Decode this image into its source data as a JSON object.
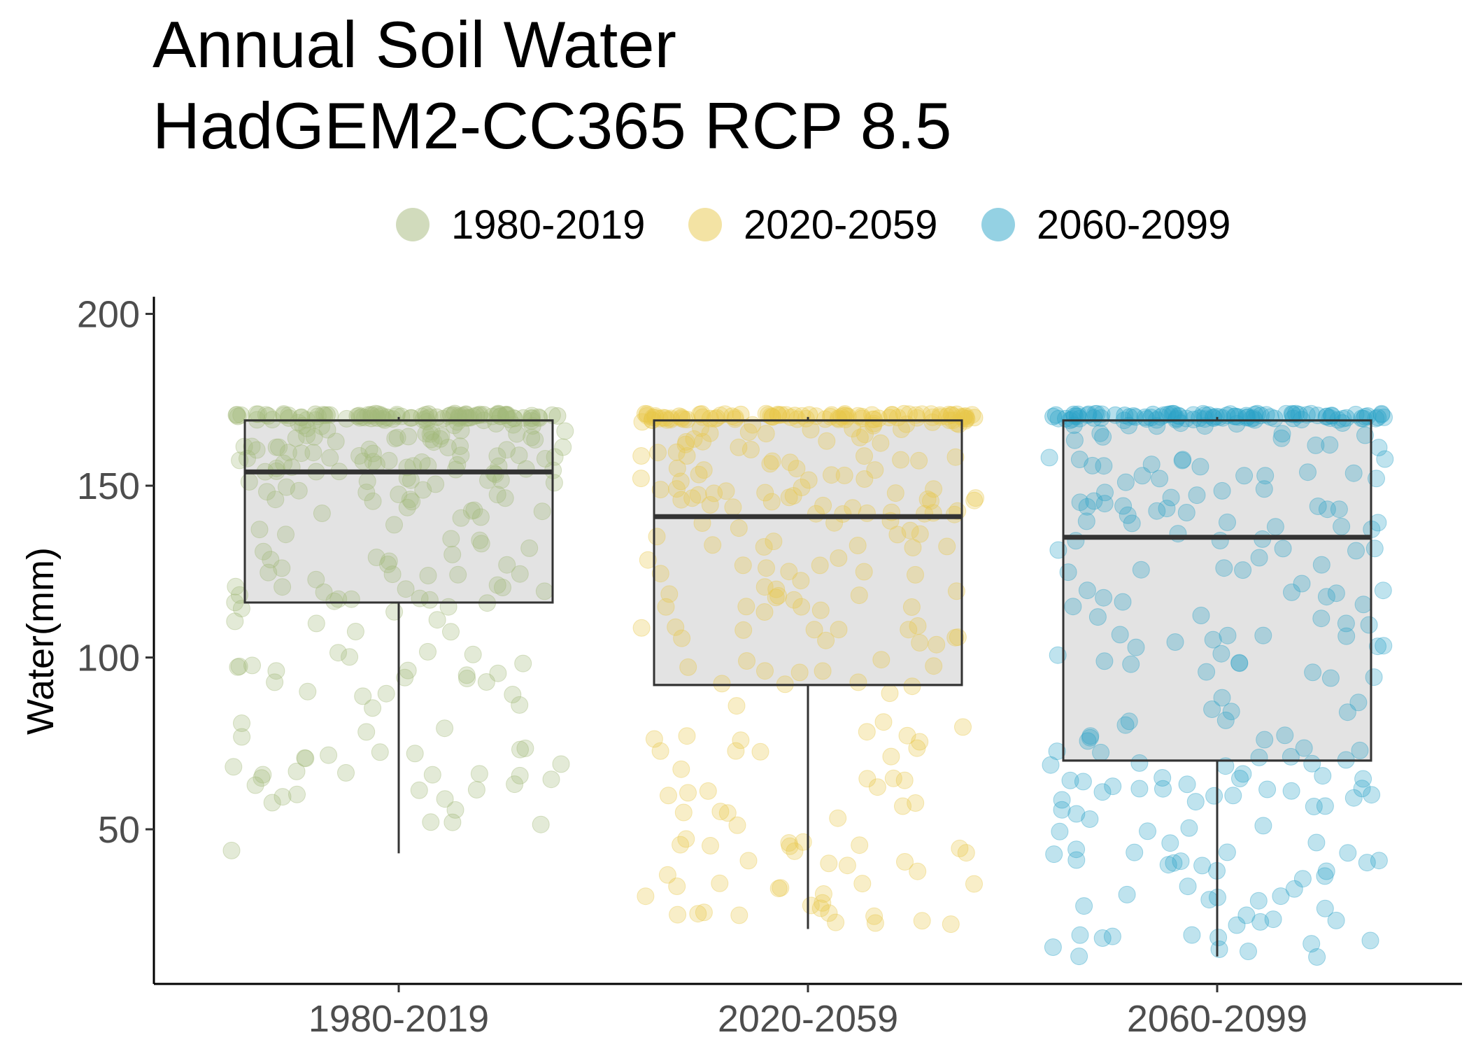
{
  "chart_data": {
    "type": "box",
    "title_line1": "Annual Soil Water",
    "title_line2": "HadGEM2-CC365 RCP 8.5",
    "xlabel": "",
    "ylabel": "Water(mm)",
    "ylim": [
      5,
      205
    ],
    "y_ticks": [
      50,
      100,
      150,
      200
    ],
    "grid": false,
    "legend_position": "top",
    "categories": [
      "1980-2019",
      "2020-2059",
      "2060-2099"
    ],
    "series": [
      {
        "name": "1980-2019",
        "color": "#a3b879",
        "whisker_low": 43,
        "q1": 116,
        "median": 154,
        "q3": 169,
        "whisker_high": 170,
        "points_min": 43,
        "points_max": 171
      },
      {
        "name": "2020-2059",
        "color": "#e8c84a",
        "whisker_low": 21,
        "q1": 92,
        "median": 141,
        "q3": 169,
        "whisker_high": 170,
        "points_min": 20,
        "points_max": 171
      },
      {
        "name": "2060-2099",
        "color": "#2aa3c8",
        "whisker_low": 13,
        "q1": 70,
        "median": 135,
        "q3": 169,
        "whisker_high": 170,
        "points_min": 12,
        "points_max": 171
      }
    ],
    "box_fill": "#e3e3e3",
    "box_stroke": "#333333"
  }
}
